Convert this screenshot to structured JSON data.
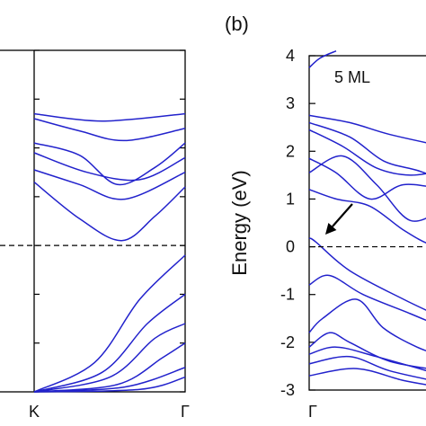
{
  "panel_b_label": "(b)",
  "chart_data": [
    {
      "type": "line",
      "title": "",
      "xlabel": "",
      "ylabel": "",
      "x_ticks": [
        "K",
        "Γ"
      ],
      "ylim": [
        -3,
        4
      ],
      "fermi_level": 0,
      "line_color": "#2222cc",
      "series": [
        {
          "x": [
            0,
            0.45,
            1
          ],
          "y": [
            2.7,
            2.55,
            2.7
          ]
        },
        {
          "x": [
            0,
            0.3,
            0.6,
            1
          ],
          "y": [
            2.6,
            2.35,
            2.15,
            2.4
          ]
        },
        {
          "x": [
            0,
            0.3,
            0.55,
            0.8,
            1
          ],
          "y": [
            2.1,
            1.85,
            1.25,
            1.6,
            2.1
          ]
        },
        {
          "x": [
            0,
            0.35,
            0.7,
            1
          ],
          "y": [
            1.9,
            1.5,
            1.35,
            1.8
          ]
        },
        {
          "x": [
            0,
            0.3,
            0.6,
            1
          ],
          "y": [
            1.55,
            1.25,
            0.95,
            1.5
          ]
        },
        {
          "x": [
            0,
            0.3,
            0.58,
            0.8,
            1
          ],
          "y": [
            1.3,
            0.55,
            0.1,
            0.6,
            1.2
          ]
        },
        {
          "x": [
            0,
            0.4,
            0.7,
            1
          ],
          "y": [
            -3,
            -2.4,
            -1.1,
            -0.2
          ]
        },
        {
          "x": [
            0,
            0.45,
            0.75,
            1
          ],
          "y": [
            -3,
            -2.6,
            -1.6,
            -1.0
          ]
        },
        {
          "x": [
            0,
            0.5,
            0.8,
            1
          ],
          "y": [
            -3,
            -2.7,
            -1.9,
            -1.6
          ]
        },
        {
          "x": [
            0,
            0.55,
            0.85,
            1
          ],
          "y": [
            -3,
            -2.85,
            -2.3,
            -2.0
          ]
        },
        {
          "x": [
            0,
            0.6,
            1
          ],
          "y": [
            -3,
            -2.9,
            -2.5
          ]
        },
        {
          "x": [
            0,
            0.7,
            1
          ],
          "y": [
            -3,
            -2.95,
            -2.7
          ]
        }
      ]
    },
    {
      "type": "line",
      "title": "",
      "annotation": "5 ML",
      "xlabel": "",
      "ylabel": "Energy (eV)",
      "ylim": [
        -3,
        4
      ],
      "yticks": [
        -3,
        -2,
        -1,
        0,
        1,
        2,
        3,
        4
      ],
      "x_ticks": [
        "Γ"
      ],
      "fermi_level": 0,
      "line_color": "#2222cc",
      "arrow_target": {
        "x": 0,
        "y": 0.18
      },
      "series": [
        {
          "x": [
            0,
            0.08,
            0.2
          ],
          "y": [
            3.75,
            3.95,
            4.1
          ]
        },
        {
          "x": [
            0,
            0.3,
            0.6,
            1
          ],
          "y": [
            2.75,
            2.6,
            2.35,
            2.1
          ]
        },
        {
          "x": [
            0,
            0.3,
            0.55,
            0.8,
            1
          ],
          "y": [
            2.6,
            2.3,
            1.8,
            1.6,
            1.4
          ]
        },
        {
          "x": [
            0,
            0.25,
            0.5,
            0.75,
            1
          ],
          "y": [
            2.45,
            2.1,
            1.65,
            1.5,
            1.6
          ]
        },
        {
          "x": [
            0,
            0.2,
            0.45,
            0.7,
            1
          ],
          "y": [
            1.85,
            1.55,
            1.0,
            1.3,
            1.2
          ]
        },
        {
          "x": [
            0,
            0.25,
            0.5,
            0.75,
            1
          ],
          "y": [
            1.55,
            1.9,
            1.3,
            0.55,
            0.8
          ]
        },
        {
          "x": [
            0,
            0.2,
            0.45,
            0.7,
            0.9,
            1
          ],
          "y": [
            1.2,
            1.0,
            0.85,
            0.35,
            0.05,
            0.15
          ]
        },
        {
          "x": [
            0,
            0.05,
            0.3,
            0.7,
            1
          ],
          "y": [
            0.18,
            0.1,
            -0.5,
            -1.1,
            -1.5
          ]
        },
        {
          "x": [
            0,
            0.15,
            0.4,
            0.75,
            1
          ],
          "y": [
            -0.8,
            -0.6,
            -1.0,
            -1.4,
            -1.7
          ]
        },
        {
          "x": [
            0,
            0.1,
            0.35,
            0.55,
            0.8,
            1
          ],
          "y": [
            -1.8,
            -1.5,
            -1.1,
            -1.7,
            -2.1,
            -2.3
          ]
        },
        {
          "x": [
            0,
            0.15,
            0.3,
            0.6,
            1
          ],
          "y": [
            -2.1,
            -1.8,
            -2.0,
            -2.4,
            -2.6
          ]
        },
        {
          "x": [
            0,
            0.2,
            0.5,
            1
          ],
          "y": [
            -2.25,
            -2.1,
            -2.3,
            -2.7
          ]
        },
        {
          "x": [
            0,
            0.3,
            0.6,
            1
          ],
          "y": [
            -2.45,
            -2.3,
            -2.6,
            -2.85
          ]
        },
        {
          "x": [
            0,
            0.35,
            0.7,
            1
          ],
          "y": [
            -2.7,
            -2.55,
            -2.8,
            -2.95
          ]
        }
      ]
    }
  ]
}
